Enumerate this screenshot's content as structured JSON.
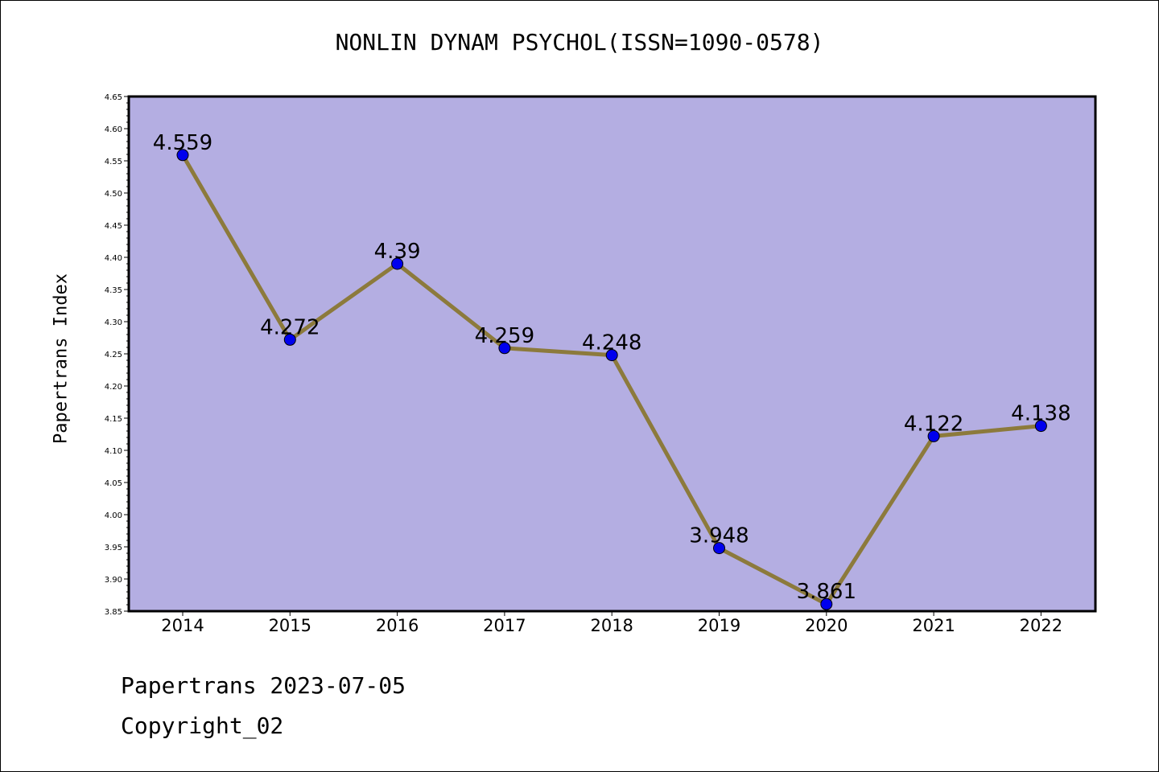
{
  "chart_data": {
    "type": "line",
    "title": "NONLIN DYNAM PSYCHOL(ISSN=1090-0578)",
    "ylabel": "Papertrans Index",
    "xlabel": "",
    "categories": [
      "2014",
      "2015",
      "2016",
      "2017",
      "2018",
      "2019",
      "2020",
      "2021",
      "2022"
    ],
    "values": [
      4.559,
      4.272,
      4.39,
      4.259,
      4.248,
      3.948,
      3.861,
      4.122,
      4.138
    ],
    "value_labels": [
      "4.559",
      "4.272",
      "4.39",
      "4.259",
      "4.248",
      "3.948",
      "3.861",
      "4.122",
      "4.138"
    ],
    "ylim": [
      3.85,
      4.65
    ],
    "yticks": [
      "3.85",
      "3.90",
      "3.95",
      "4.00",
      "4.05",
      "4.10",
      "4.15",
      "4.20",
      "4.25",
      "4.30",
      "4.35",
      "4.40",
      "4.45",
      "4.50",
      "4.55",
      "4.60",
      "4.65"
    ],
    "grid": false,
    "legend": "none",
    "colors": {
      "plot_background": "#b4aee2",
      "line": "#8c7a3c",
      "marker": "#0000ee"
    }
  },
  "footer": {
    "date_line": "Papertrans 2023-07-05",
    "copyright": "Copyright_02"
  }
}
